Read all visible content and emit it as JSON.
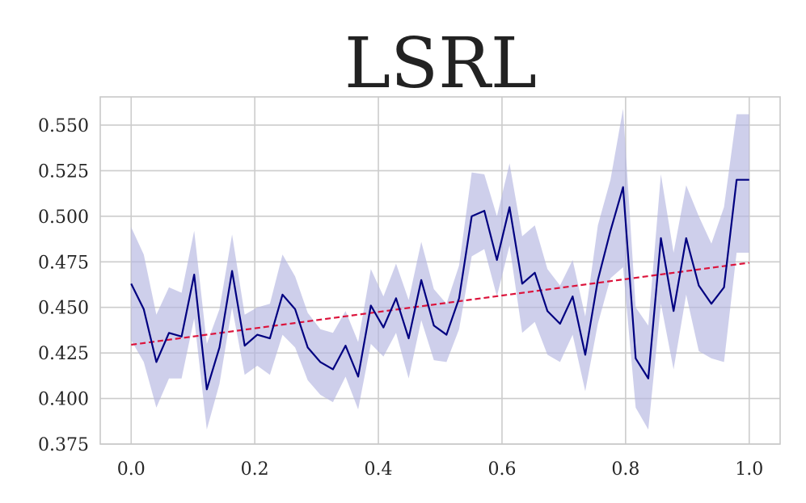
{
  "chart_data": {
    "type": "line",
    "title": "LSRL",
    "xlabel": "",
    "ylabel": "",
    "xlim": [
      -0.05,
      1.05
    ],
    "ylim": [
      0.375,
      0.5655
    ],
    "grid": true,
    "xticks": [
      0.0,
      0.2,
      0.4,
      0.6,
      0.8,
      1.0
    ],
    "xtick_labels": [
      "0.0",
      "0.2",
      "0.4",
      "0.6",
      "0.8",
      "1.0"
    ],
    "yticks": [
      0.375,
      0.4,
      0.425,
      0.45,
      0.475,
      0.5,
      0.525,
      0.55
    ],
    "ytick_labels": [
      "0.375",
      "0.400",
      "0.425",
      "0.450",
      "0.475",
      "0.500",
      "0.525",
      "0.550"
    ],
    "colors": {
      "line": "#000080",
      "band": "#b4b6e0",
      "trend": "#dc143c"
    },
    "series": [
      {
        "style": "solid line with shaded band",
        "x": [
          0.0,
          0.0204,
          0.0408,
          0.0612,
          0.0816,
          0.102,
          0.1224,
          0.1429,
          0.1633,
          0.1837,
          0.2041,
          0.2245,
          0.2449,
          0.2653,
          0.2857,
          0.3061,
          0.3265,
          0.3469,
          0.3673,
          0.3878,
          0.4082,
          0.4286,
          0.449,
          0.4694,
          0.4898,
          0.5102,
          0.5306,
          0.551,
          0.5714,
          0.5918,
          0.6122,
          0.6327,
          0.6531,
          0.6735,
          0.6939,
          0.7143,
          0.7347,
          0.7551,
          0.7755,
          0.7959,
          0.8163,
          0.8367,
          0.8571,
          0.8776,
          0.898,
          0.9184,
          0.9388,
          0.9592,
          0.9796,
          1.0
        ],
        "y": [
          0.463,
          0.449,
          0.42,
          0.436,
          0.434,
          0.468,
          0.405,
          0.428,
          0.47,
          0.429,
          0.435,
          0.433,
          0.457,
          0.449,
          0.428,
          0.42,
          0.416,
          0.429,
          0.412,
          0.451,
          0.439,
          0.455,
          0.433,
          0.465,
          0.44,
          0.435,
          0.455,
          0.5,
          0.503,
          0.476,
          0.505,
          0.463,
          0.469,
          0.448,
          0.441,
          0.456,
          0.424,
          0.465,
          0.492,
          0.516,
          0.422,
          0.411,
          0.488,
          0.448,
          0.488,
          0.462,
          0.452,
          0.461,
          0.52,
          0.52
        ],
        "lower": [
          0.432,
          0.42,
          0.395,
          0.411,
          0.411,
          0.444,
          0.383,
          0.408,
          0.45,
          0.413,
          0.418,
          0.413,
          0.435,
          0.428,
          0.41,
          0.402,
          0.398,
          0.412,
          0.394,
          0.43,
          0.423,
          0.436,
          0.411,
          0.443,
          0.421,
          0.42,
          0.438,
          0.478,
          0.482,
          0.456,
          0.484,
          0.436,
          0.442,
          0.424,
          0.42,
          0.435,
          0.404,
          0.441,
          0.466,
          0.472,
          0.395,
          0.383,
          0.452,
          0.416,
          0.457,
          0.426,
          0.422,
          0.42,
          0.48,
          0.48
        ],
        "upper": [
          0.494,
          0.479,
          0.446,
          0.461,
          0.458,
          0.492,
          0.43,
          0.449,
          0.49,
          0.446,
          0.45,
          0.452,
          0.479,
          0.467,
          0.447,
          0.438,
          0.436,
          0.448,
          0.431,
          0.471,
          0.456,
          0.474,
          0.454,
          0.486,
          0.46,
          0.452,
          0.473,
          0.524,
          0.523,
          0.5,
          0.529,
          0.489,
          0.495,
          0.471,
          0.462,
          0.476,
          0.445,
          0.495,
          0.52,
          0.559,
          0.45,
          0.44,
          0.523,
          0.48,
          0.517,
          0.5,
          0.485,
          0.505,
          0.556,
          0.556
        ]
      },
      {
        "style": "dashed trend line",
        "x": [
          0.0,
          1.0
        ],
        "y": [
          0.4295,
          0.4745
        ]
      }
    ]
  }
}
